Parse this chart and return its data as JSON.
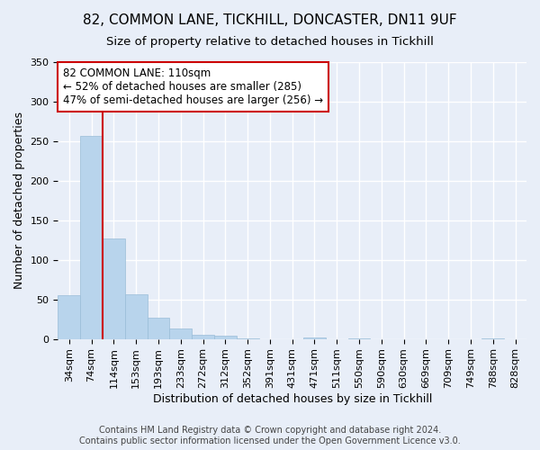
{
  "title": "82, COMMON LANE, TICKHILL, DONCASTER, DN11 9UF",
  "subtitle": "Size of property relative to detached houses in Tickhill",
  "xlabel": "Distribution of detached houses by size in Tickhill",
  "ylabel": "Number of detached properties",
  "categories": [
    "34sqm",
    "74sqm",
    "114sqm",
    "153sqm",
    "193sqm",
    "233sqm",
    "272sqm",
    "312sqm",
    "352sqm",
    "391sqm",
    "431sqm",
    "471sqm",
    "511sqm",
    "550sqm",
    "590sqm",
    "630sqm",
    "669sqm",
    "709sqm",
    "749sqm",
    "788sqm",
    "828sqm"
  ],
  "values": [
    55,
    257,
    127,
    57,
    27,
    13,
    5,
    4,
    1,
    0,
    0,
    2,
    0,
    1,
    0,
    0,
    0,
    0,
    0,
    1,
    0
  ],
  "bar_color": "#b8d4ec",
  "bar_edge_color": "#9abdd8",
  "property_line_color": "#cc0000",
  "annotation_text": "82 COMMON LANE: 110sqm\n← 52% of detached houses are smaller (285)\n47% of semi-detached houses are larger (256) →",
  "annotation_box_color": "#ffffff",
  "annotation_box_edge_color": "#cc0000",
  "ylim": [
    0,
    350
  ],
  "yticks": [
    0,
    50,
    100,
    150,
    200,
    250,
    300,
    350
  ],
  "footer": "Contains HM Land Registry data © Crown copyright and database right 2024.\nContains public sector information licensed under the Open Government Licence v3.0.",
  "background_color": "#e8eef8",
  "plot_background_color": "#e8eef8",
  "grid_color": "#ffffff",
  "title_fontsize": 11,
  "subtitle_fontsize": 9.5,
  "axis_label_fontsize": 9,
  "tick_fontsize": 8,
  "footer_fontsize": 7,
  "annotation_fontsize": 8.5
}
